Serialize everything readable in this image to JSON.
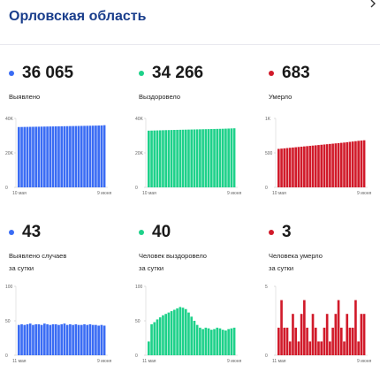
{
  "header": {
    "title": "Орловская область"
  },
  "colors": {
    "title": "#1a3e8c",
    "blue": "#3a6cf4",
    "green": "#1ed18a",
    "red": "#d11a2a"
  },
  "stats": [
    {
      "value": "36 065",
      "label": "Выявлено",
      "color": "blue"
    },
    {
      "value": "34 266",
      "label": "Выздоровело",
      "color": "green"
    },
    {
      "value": "683",
      "label": "Умерло",
      "color": "red"
    },
    {
      "value": "43",
      "label": "Выявлено случаев",
      "label2": "за сутки",
      "color": "blue"
    },
    {
      "value": "40",
      "label": "Человек выздоровело",
      "label2": "за сутки",
      "color": "green"
    },
    {
      "value": "3",
      "label": "Человека умерло",
      "label2": "за сутки",
      "color": "red"
    }
  ],
  "chart_data": [
    {
      "type": "bar",
      "title": "",
      "color": "blue",
      "ylim": [
        0,
        40000
      ],
      "y_ticks": [
        0,
        20000,
        40000
      ],
      "y_tick_labels": [
        "0",
        "20K",
        "40K"
      ],
      "x_tick_labels": [
        "10 мая",
        "9 июня"
      ],
      "values": [
        35000,
        35030,
        35060,
        35090,
        35120,
        35150,
        35180,
        35210,
        35240,
        35270,
        35300,
        35330,
        35360,
        35390,
        35420,
        35450,
        35480,
        35510,
        35540,
        35570,
        35600,
        35630,
        35660,
        35690,
        35720,
        35760,
        35800,
        35840,
        35880,
        35920,
        36065
      ]
    },
    {
      "type": "bar",
      "title": "",
      "color": "green",
      "ylim": [
        0,
        40000
      ],
      "y_ticks": [
        0,
        20000,
        40000
      ],
      "y_tick_labels": [
        "0",
        "20K",
        "40K"
      ],
      "x_tick_labels": [
        "10 мая",
        "9 июня"
      ],
      "values": [
        32900,
        32950,
        33000,
        33050,
        33100,
        33150,
        33200,
        33240,
        33280,
        33320,
        33360,
        33400,
        33440,
        33480,
        33520,
        33560,
        33600,
        33640,
        33680,
        33720,
        33760,
        33800,
        33840,
        33880,
        33920,
        33960,
        34000,
        34060,
        34120,
        34190,
        34266
      ]
    },
    {
      "type": "bar",
      "title": "",
      "color": "red",
      "ylim": [
        0,
        1000
      ],
      "y_ticks": [
        0,
        500,
        1000
      ],
      "y_tick_labels": [
        "0",
        "500",
        "1K"
      ],
      "x_tick_labels": [
        "10 мая",
        "9 июня"
      ],
      "values": [
        558,
        562,
        566,
        570,
        574,
        578,
        582,
        586,
        590,
        594,
        598,
        602,
        606,
        610,
        614,
        618,
        622,
        626,
        630,
        634,
        638,
        642,
        646,
        650,
        655,
        660,
        665,
        670,
        675,
        679,
        683
      ]
    },
    {
      "type": "bar",
      "title": "",
      "color": "blue",
      "ylim": [
        0,
        100
      ],
      "y_ticks": [
        0,
        50,
        100
      ],
      "y_tick_labels": [
        "0",
        "50",
        "100"
      ],
      "x_tick_labels": [
        "11 мая",
        "9 июня"
      ],
      "values": [
        44,
        45,
        44,
        45,
        46,
        44,
        45,
        45,
        44,
        46,
        45,
        44,
        45,
        45,
        44,
        45,
        46,
        44,
        45,
        44,
        45,
        44,
        44,
        45,
        44,
        45,
        44,
        44,
        43,
        44,
        43
      ]
    },
    {
      "type": "bar",
      "title": "",
      "color": "green",
      "ylim": [
        0,
        100
      ],
      "y_ticks": [
        0,
        50,
        100
      ],
      "y_tick_labels": [
        "0",
        "50",
        "100"
      ],
      "x_tick_labels": [
        "11 мая",
        "9 июня"
      ],
      "values": [
        20,
        45,
        48,
        52,
        55,
        58,
        60,
        62,
        64,
        66,
        68,
        70,
        69,
        67,
        62,
        56,
        50,
        44,
        40,
        38,
        40,
        39,
        37,
        38,
        40,
        39,
        37,
        36,
        38,
        39,
        40
      ]
    },
    {
      "type": "bar",
      "title": "",
      "color": "red",
      "ylim": [
        0,
        5
      ],
      "y_ticks": [
        0,
        5
      ],
      "y_tick_labels": [
        "0",
        "5"
      ],
      "x_tick_labels": [
        "11 мая",
        "9 июня"
      ],
      "values": [
        2,
        4,
        2,
        2,
        1,
        3,
        2,
        1,
        3,
        4,
        2,
        1,
        3,
        2,
        1,
        1,
        2,
        3,
        1,
        2,
        3,
        4,
        2,
        1,
        3,
        2,
        2,
        4,
        1,
        3,
        3
      ]
    }
  ]
}
